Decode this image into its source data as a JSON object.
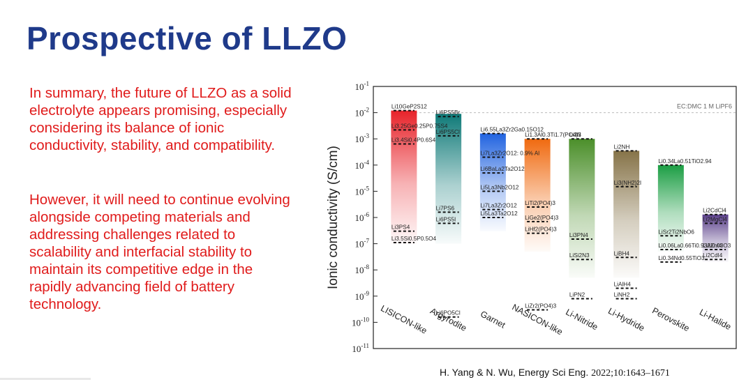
{
  "slide": {
    "title": "Prospective of LLZO",
    "paragraph1": "In summary, the future of LLZO as a solid electrolyte appears promising, especially considering its balance of ionic conductivity, stability, and compatibility.",
    "paragraph2": "However, it will need to continue evolving alongside competing materials and addressing challenges related to scalability and interfacial stability to maintain its competitive edge in the rapidly advancing field of battery technology.",
    "citation_authors": "H. Yang & N. Wu, Energy Sci Eng.",
    "citation_ref": "2022;10:1643–1671",
    "colors": {
      "title": "#1f3a8a",
      "body_text": "#e01b1b"
    }
  },
  "chart_data": {
    "type": "bar",
    "ylabel": "Ionic conductivity (S/cm)",
    "yscale": "log",
    "ylim": [
      1e-11,
      0.1
    ],
    "yticks": [
      "10-11",
      "10-10",
      "10-9",
      "10-8",
      "10-7",
      "10-6",
      "10-5",
      "10-4",
      "10-3",
      "10-2",
      "10-1"
    ],
    "reference_line": {
      "label": "EC:DMC 1 M LiPF6",
      "value": 0.01
    },
    "categories": [
      "LISICON-like",
      "Argyrodite",
      "Garnet",
      "NASICON-like",
      "Li-Nitride",
      "Li-Hydride",
      "Perovskite",
      "Li-Halide"
    ],
    "ranges": [
      {
        "category": "LISICON-like",
        "top": 0.012,
        "bottom": 1e-07,
        "color": "#e8232a"
      },
      {
        "category": "Argyrodite",
        "top": 0.009,
        "bottom": 1e-07,
        "color": "#0f7a78"
      },
      {
        "category": "Garnet",
        "top": 0.0016,
        "bottom": 3e-07,
        "color": "#2163e0"
      },
      {
        "category": "NASICON-like",
        "top": 0.001,
        "bottom": 5e-08,
        "color": "#f06a10"
      },
      {
        "category": "Li-Nitride",
        "top": 0.001,
        "bottom": 5e-09,
        "color": "#4b8f2a"
      },
      {
        "category": "Li-Hydride",
        "top": 0.00035,
        "bottom": 5e-09,
        "color": "#867348"
      },
      {
        "category": "Perovskite",
        "top": 0.0001,
        "bottom": 5e-08,
        "color": "#1c9e44"
      },
      {
        "category": "Li-Halide",
        "top": 1.3e-06,
        "bottom": 2e-08,
        "color": "#5a3f8a"
      }
    ],
    "materials": [
      {
        "category": "LISICON-like",
        "label": "Li10GeP2S12",
        "value": 0.012
      },
      {
        "category": "LISICON-like",
        "label": "Li3.25Ge0.25P0.75S4",
        "value": 0.0022
      },
      {
        "category": "LISICON-like",
        "label": "Li3.4Si0.4P0.6S4",
        "value": 0.00064
      },
      {
        "category": "LISICON-like",
        "label": "Li3PS4",
        "value": 3e-07
      },
      {
        "category": "LISICON-like",
        "label": "Li3.5Si0.5P0.5O4",
        "value": 1.1e-07
      },
      {
        "category": "Argyrodite",
        "label": "Li6PS5Br",
        "value": 0.0071
      },
      {
        "category": "Argyrodite",
        "label": "Li6PS5Cl",
        "value": 0.0013
      },
      {
        "category": "Argyrodite",
        "label": "Li7PS6",
        "value": 1.6e-06
      },
      {
        "category": "Argyrodite",
        "label": "Li6PS5I",
        "value": 6e-07
      },
      {
        "category": "Argyrodite",
        "label": "Li6PO5Cl",
        "value": 1.6e-10
      },
      {
        "category": "Garnet",
        "label": "Li6.55La3Zr2Ga0.15O12",
        "value": 0.0016
      },
      {
        "category": "Garnet",
        "label": "Li7La3Zr2O12: 0.9% Al",
        "value": 0.0002
      },
      {
        "category": "Garnet",
        "label": "Li6BaLa2Ta2O12",
        "value": 5e-05
      },
      {
        "category": "Garnet",
        "label": "Li5La3Nb2O12",
        "value": 1e-05
      },
      {
        "category": "Garnet",
        "label": "Li7La3Zr2O12",
        "value": 2e-06
      },
      {
        "category": "Garnet",
        "label": "Li5La3Ta2O12",
        "value": 1e-06
      },
      {
        "category": "NASICON-like",
        "label": "Li1.3Al0.3Ti1.7(PO4)3",
        "value": 0.001
      },
      {
        "category": "NASICON-like",
        "label": "LiTi2(PO4)3",
        "value": 2.5e-06
      },
      {
        "category": "NASICON-like",
        "label": "LiGe2(PO4)3",
        "value": 7e-07
      },
      {
        "category": "NASICON-like",
        "label": "LiHf2(PO4)3",
        "value": 2.5e-07
      },
      {
        "category": "NASICON-like",
        "label": "LiZr2(PO4)3",
        "value": 3e-10
      },
      {
        "category": "Li-Nitride",
        "label": "Li3N",
        "value": 0.001
      },
      {
        "category": "Li-Nitride",
        "label": "Li3PN4",
        "value": 1.5e-07
      },
      {
        "category": "Li-Nitride",
        "label": "LiSi2N3",
        "value": 2.5e-08
      },
      {
        "category": "Li-Nitride",
        "label": "LiPN2",
        "value": 8e-10
      },
      {
        "category": "Li-Hydride",
        "label": "Li2NH",
        "value": 0.00035
      },
      {
        "category": "Li-Hydride",
        "label": "Li3(NH2)2I",
        "value": 1.5e-05
      },
      {
        "category": "Li-Hydride",
        "label": "LiBH4",
        "value": 3e-08
      },
      {
        "category": "Li-Hydride",
        "label": "LiAlH4",
        "value": 2e-09
      },
      {
        "category": "Li-Hydride",
        "label": "LiNH2",
        "value": 8e-10
      },
      {
        "category": "Perovskite",
        "label": "Li0.34La0.51TiO2.94",
        "value": 0.0001
      },
      {
        "category": "Perovskite",
        "label": "LiSr2Ti2NbO6",
        "value": 2e-07
      },
      {
        "category": "Perovskite",
        "label": "Li0.06La0.66Ti0.93Al0.03O3",
        "value": 6e-08
      },
      {
        "category": "Perovskite",
        "label": "Li0.34Nd0.55TiO3",
        "value": 2e-08
      },
      {
        "category": "Li-Halide",
        "label": "Li2CdCl4",
        "value": 1.3e-06
      },
      {
        "category": "Li-Halide",
        "label": "Li2MgCl4",
        "value": 6e-07
      },
      {
        "category": "Li-Halide",
        "label": "Li2ZnI4",
        "value": 6e-08
      },
      {
        "category": "Li-Halide",
        "label": "Li2CdI4",
        "value": 2.5e-08
      }
    ]
  }
}
